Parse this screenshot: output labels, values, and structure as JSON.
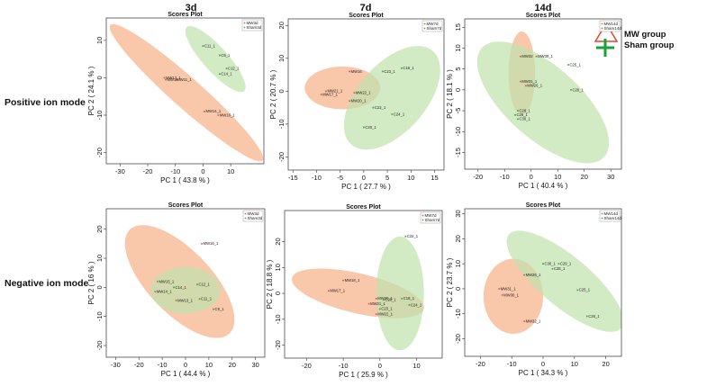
{
  "column_headers": [
    "3d",
    "7d",
    "14d"
  ],
  "row_headers": [
    "Positive ion mode",
    "Negative ion mode"
  ],
  "legend": {
    "mw": "MW group",
    "sham": "Sham group",
    "mw_color": "#e8442c",
    "sham_color": "#1aa33a"
  },
  "colors": {
    "mw_fill": "#f7b48e",
    "sham_fill": "#bfe3ad",
    "mw_point": "#e06050",
    "sham_point": "#4aa84a"
  },
  "chart_data": [
    {
      "type": "scatter",
      "title": "Scores Plot",
      "xlabel": "PC 1 ( 43.8 % )",
      "ylabel": "PC 2 ( 24.1 % )",
      "xlim": [
        -35,
        22
      ],
      "ylim": [
        -23,
        16
      ],
      "xticks": [
        -30,
        -20,
        -10,
        0,
        10
      ],
      "yticks": [
        -20,
        -10,
        0,
        10
      ],
      "legend_entries": [
        "MW3d",
        "Sham3d"
      ],
      "ellipses": [
        {
          "group": "mw",
          "cx": -6,
          "cy": -4,
          "rx": 33,
          "ry": 4.5,
          "angle_deg": -33
        },
        {
          "group": "sham",
          "cx": 4.5,
          "cy": 5,
          "rx": 13.5,
          "ry": 3.8,
          "angle_deg": -38
        }
      ],
      "points": [
        {
          "label": "C11_1",
          "group": "sham",
          "x": 0,
          "y": 8.5
        },
        {
          "label": "C9_1",
          "group": "sham",
          "x": 6,
          "y": 6
        },
        {
          "label": "C12_1",
          "group": "sham",
          "x": 8.5,
          "y": 2.5
        },
        {
          "label": "C14_1",
          "group": "sham",
          "x": 6,
          "y": 1
        },
        {
          "label": "MW13_1",
          "group": "mw",
          "x": -14,
          "y": 0
        },
        {
          "label": "MW14",
          "group": "mw",
          "x": -13.5,
          "y": -0.5
        },
        {
          "label": "MW11_1",
          "group": "mw",
          "x": -10,
          "y": -0.5
        },
        {
          "label": "MW14_1",
          "group": "mw",
          "x": 0.5,
          "y": -9
        },
        {
          "label": "MW16_1",
          "group": "mw",
          "x": 5.5,
          "y": -10
        }
      ]
    },
    {
      "type": "scatter",
      "title": "Scores Plot",
      "xlabel": "PC 1 ( 27.7 % )",
      "ylabel": "PC 2 ( 20.7 % )",
      "xlim": [
        -16,
        17
      ],
      "ylim": [
        -24,
        22
      ],
      "xticks": [
        -15,
        -10,
        -5,
        0,
        5,
        10,
        15
      ],
      "yticks": [
        -20,
        -10,
        0,
        10,
        20
      ],
      "legend_entries": [
        "MW7d",
        "Sham7d"
      ],
      "ellipses": [
        {
          "group": "mw",
          "cx": -4.5,
          "cy": 1,
          "rx": 8,
          "ry": 6.5,
          "angle_deg": 0
        },
        {
          "group": "sham",
          "cx": 6,
          "cy": -2,
          "rx": 8,
          "ry": 17,
          "angle_deg": -25
        }
      ],
      "points": [
        {
          "label": "MW16",
          "group": "mw",
          "x": -3,
          "y": 6
        },
        {
          "label": "MW21_1",
          "group": "mw",
          "x": -8,
          "y": 0
        },
        {
          "label": "MW17_1",
          "group": "mw",
          "x": -9,
          "y": -1
        },
        {
          "label": "MW22_1",
          "group": "mw",
          "x": -2,
          "y": -0.5
        },
        {
          "label": "MW20_1",
          "group": "mw",
          "x": -3,
          "y": -3
        },
        {
          "label": "C23_1",
          "group": "sham",
          "x": 4,
          "y": 6
        },
        {
          "label": "C18_1",
          "group": "sham",
          "x": 8,
          "y": 7
        },
        {
          "label": "C22_1",
          "group": "sham",
          "x": 2,
          "y": -5
        },
        {
          "label": "C24_1",
          "group": "sham",
          "x": 6,
          "y": -7
        },
        {
          "label": "C20_1",
          "group": "sham",
          "x": 0,
          "y": -11
        }
      ]
    },
    {
      "type": "scatter",
      "title": "Scores Plot",
      "xlabel": "PC 1 ( 40.4 % )",
      "ylabel": "PC 2 ( 18.1 % )",
      "xlim": [
        -25,
        34
      ],
      "ylim": [
        -19,
        17
      ],
      "xticks": [
        -20,
        -10,
        0,
        10,
        20,
        30
      ],
      "yticks": [
        -15,
        -10,
        -5,
        0,
        5,
        10,
        15
      ],
      "legend_entries": [
        "MW14d",
        "Sham14d"
      ],
      "ellipses": [
        {
          "group": "mw",
          "cx": -3.5,
          "cy": 4,
          "rx": 5,
          "ry": 10,
          "angle_deg": 0
        },
        {
          "group": "sham",
          "cx": 4.5,
          "cy": -3,
          "rx": 27,
          "ry": 10,
          "angle_deg": -25
        }
      ],
      "points": [
        {
          "label": "MW32",
          "group": "mw",
          "x": -4,
          "y": 8
        },
        {
          "label": "MW30_1",
          "group": "mw",
          "x": 2,
          "y": 8
        },
        {
          "label": "MW31_1",
          "group": "mw",
          "x": -4,
          "y": 2
        },
        {
          "label": "MW26_1",
          "group": "mw",
          "x": -2,
          "y": 1
        },
        {
          "label": "C25_1",
          "group": "sham",
          "x": 14,
          "y": 6
        },
        {
          "label": "C29_1",
          "group": "sham",
          "x": 15,
          "y": 0
        },
        {
          "label": "C28_1",
          "group": "sham",
          "x": -5,
          "y": -5
        },
        {
          "label": "C26_1",
          "group": "sham",
          "x": -6,
          "y": -6
        },
        {
          "label": "C30_1",
          "group": "sham",
          "x": -5,
          "y": -7
        }
      ]
    },
    {
      "type": "scatter",
      "title": "Scores Plot",
      "xlabel": "PC 1 ( 44.4 % )",
      "ylabel": "PC 2 ( 16 % )",
      "xlim": [
        -34,
        34
      ],
      "ylim": [
        -24,
        27
      ],
      "xticks": [
        -30,
        -20,
        -10,
        0,
        10,
        20,
        30
      ],
      "yticks": [
        -20,
        -10,
        0,
        10,
        20
      ],
      "legend_entries": [
        "MW3d",
        "Sham3d"
      ],
      "ellipses": [
        {
          "group": "mw",
          "cx": -2.5,
          "cy": 2,
          "rx": 28,
          "ry": 12,
          "angle_deg": -37
        },
        {
          "group": "sham",
          "cx": 0,
          "cy": -1,
          "rx": 15,
          "ry": 8,
          "angle_deg": 0
        }
      ],
      "points": [
        {
          "label": "MW16_1",
          "group": "mw",
          "x": 7,
          "y": 15
        },
        {
          "label": "MW15_1",
          "group": "mw",
          "x": -12,
          "y": 2
        },
        {
          "label": "MW14_1",
          "group": "mw",
          "x": -13,
          "y": -1.5
        },
        {
          "label": "MW13_1",
          "group": "mw",
          "x": -4,
          "y": -4.5
        },
        {
          "label": "C12_1",
          "group": "sham",
          "x": 5,
          "y": 1
        },
        {
          "label": "C14_1",
          "group": "sham",
          "x": -5,
          "y": 0
        },
        {
          "label": "C11_1",
          "group": "sham",
          "x": 6,
          "y": -4
        },
        {
          "label": "C9_1",
          "group": "sham",
          "x": 12,
          "y": -7.5
        }
      ]
    },
    {
      "type": "scatter",
      "title": "Scores Plot",
      "xlabel": "PC 1 ( 25.9 % )",
      "ylabel": "PC 2 ( 18.8 % )",
      "xlim": [
        -26,
        17
      ],
      "ylim": [
        -25,
        32
      ],
      "xticks": [
        -20,
        -10,
        0,
        10
      ],
      "yticks": [
        -20,
        -10,
        0,
        10,
        20
      ],
      "legend_entries": [
        "MW7d",
        "Sham7d"
      ],
      "ellipses": [
        {
          "group": "mw",
          "cx": -6,
          "cy": 0,
          "rx": 19,
          "ry": 7.5,
          "angle_deg": -20
        },
        {
          "group": "sham",
          "cx": 5.5,
          "cy": 0,
          "rx": 6.5,
          "ry": 22,
          "angle_deg": 0
        }
      ],
      "points": [
        {
          "label": "C22_1",
          "group": "sham",
          "x": 7,
          "y": 22
        },
        {
          "label": "MW18_1",
          "group": "mw",
          "x": -10,
          "y": 5
        },
        {
          "label": "MW17_1",
          "group": "mw",
          "x": -14,
          "y": 1
        },
        {
          "label": "MW20_1",
          "group": "mw",
          "x": -1,
          "y": -2
        },
        {
          "label": "C20_1",
          "group": "sham",
          "x": 1,
          "y": -2.5
        },
        {
          "label": "C18_1",
          "group": "sham",
          "x": 6,
          "y": -2
        },
        {
          "label": "MW21_1",
          "group": "mw",
          "x": -3,
          "y": -4
        },
        {
          "label": "C24_1",
          "group": "sham",
          "x": 8,
          "y": -4.5
        },
        {
          "label": "C23_1",
          "group": "sham",
          "x": 0,
          "y": -6
        },
        {
          "label": "MW22_1",
          "group": "mw",
          "x": -1,
          "y": -8
        }
      ]
    },
    {
      "type": "scatter",
      "title": "Scores Plot",
      "xlabel": "PC 1 ( 34.3 % )",
      "ylabel": "PC 2 ( 23.7 % )",
      "xlim": [
        -25,
        25
      ],
      "ylim": [
        -27,
        32
      ],
      "xticks": [
        -20,
        -10,
        0,
        10,
        20
      ],
      "yticks": [
        -20,
        -10,
        0,
        10,
        20,
        30
      ],
      "legend_entries": [
        "MW14d",
        "Sham14d"
      ],
      "ellipses": [
        {
          "group": "mw",
          "cx": -9.5,
          "cy": -3,
          "rx": 9.5,
          "ry": 15,
          "angle_deg": 0
        },
        {
          "group": "sham",
          "cx": 7,
          "cy": 3,
          "rx": 26,
          "ry": 9,
          "angle_deg": -48
        }
      ],
      "points": [
        {
          "label": "C30_1",
          "group": "sham",
          "x": 0,
          "y": 10
        },
        {
          "label": "C29_1",
          "group": "sham",
          "x": 5,
          "y": 10
        },
        {
          "label": "C28_1",
          "group": "sham",
          "x": 3,
          "y": 8
        },
        {
          "label": "MW26_1",
          "group": "mw",
          "x": -6,
          "y": 5.5
        },
        {
          "label": "MW31_1",
          "group": "mw",
          "x": -14,
          "y": 0
        },
        {
          "label": "MW30_1",
          "group": "mw",
          "x": -13,
          "y": -2.5
        },
        {
          "label": "C25_1",
          "group": "sham",
          "x": 11,
          "y": -0.5
        },
        {
          "label": "C26_1",
          "group": "sham",
          "x": 14,
          "y": -11
        },
        {
          "label": "MW32_1",
          "group": "mw",
          "x": -6,
          "y": -13
        }
      ]
    }
  ]
}
